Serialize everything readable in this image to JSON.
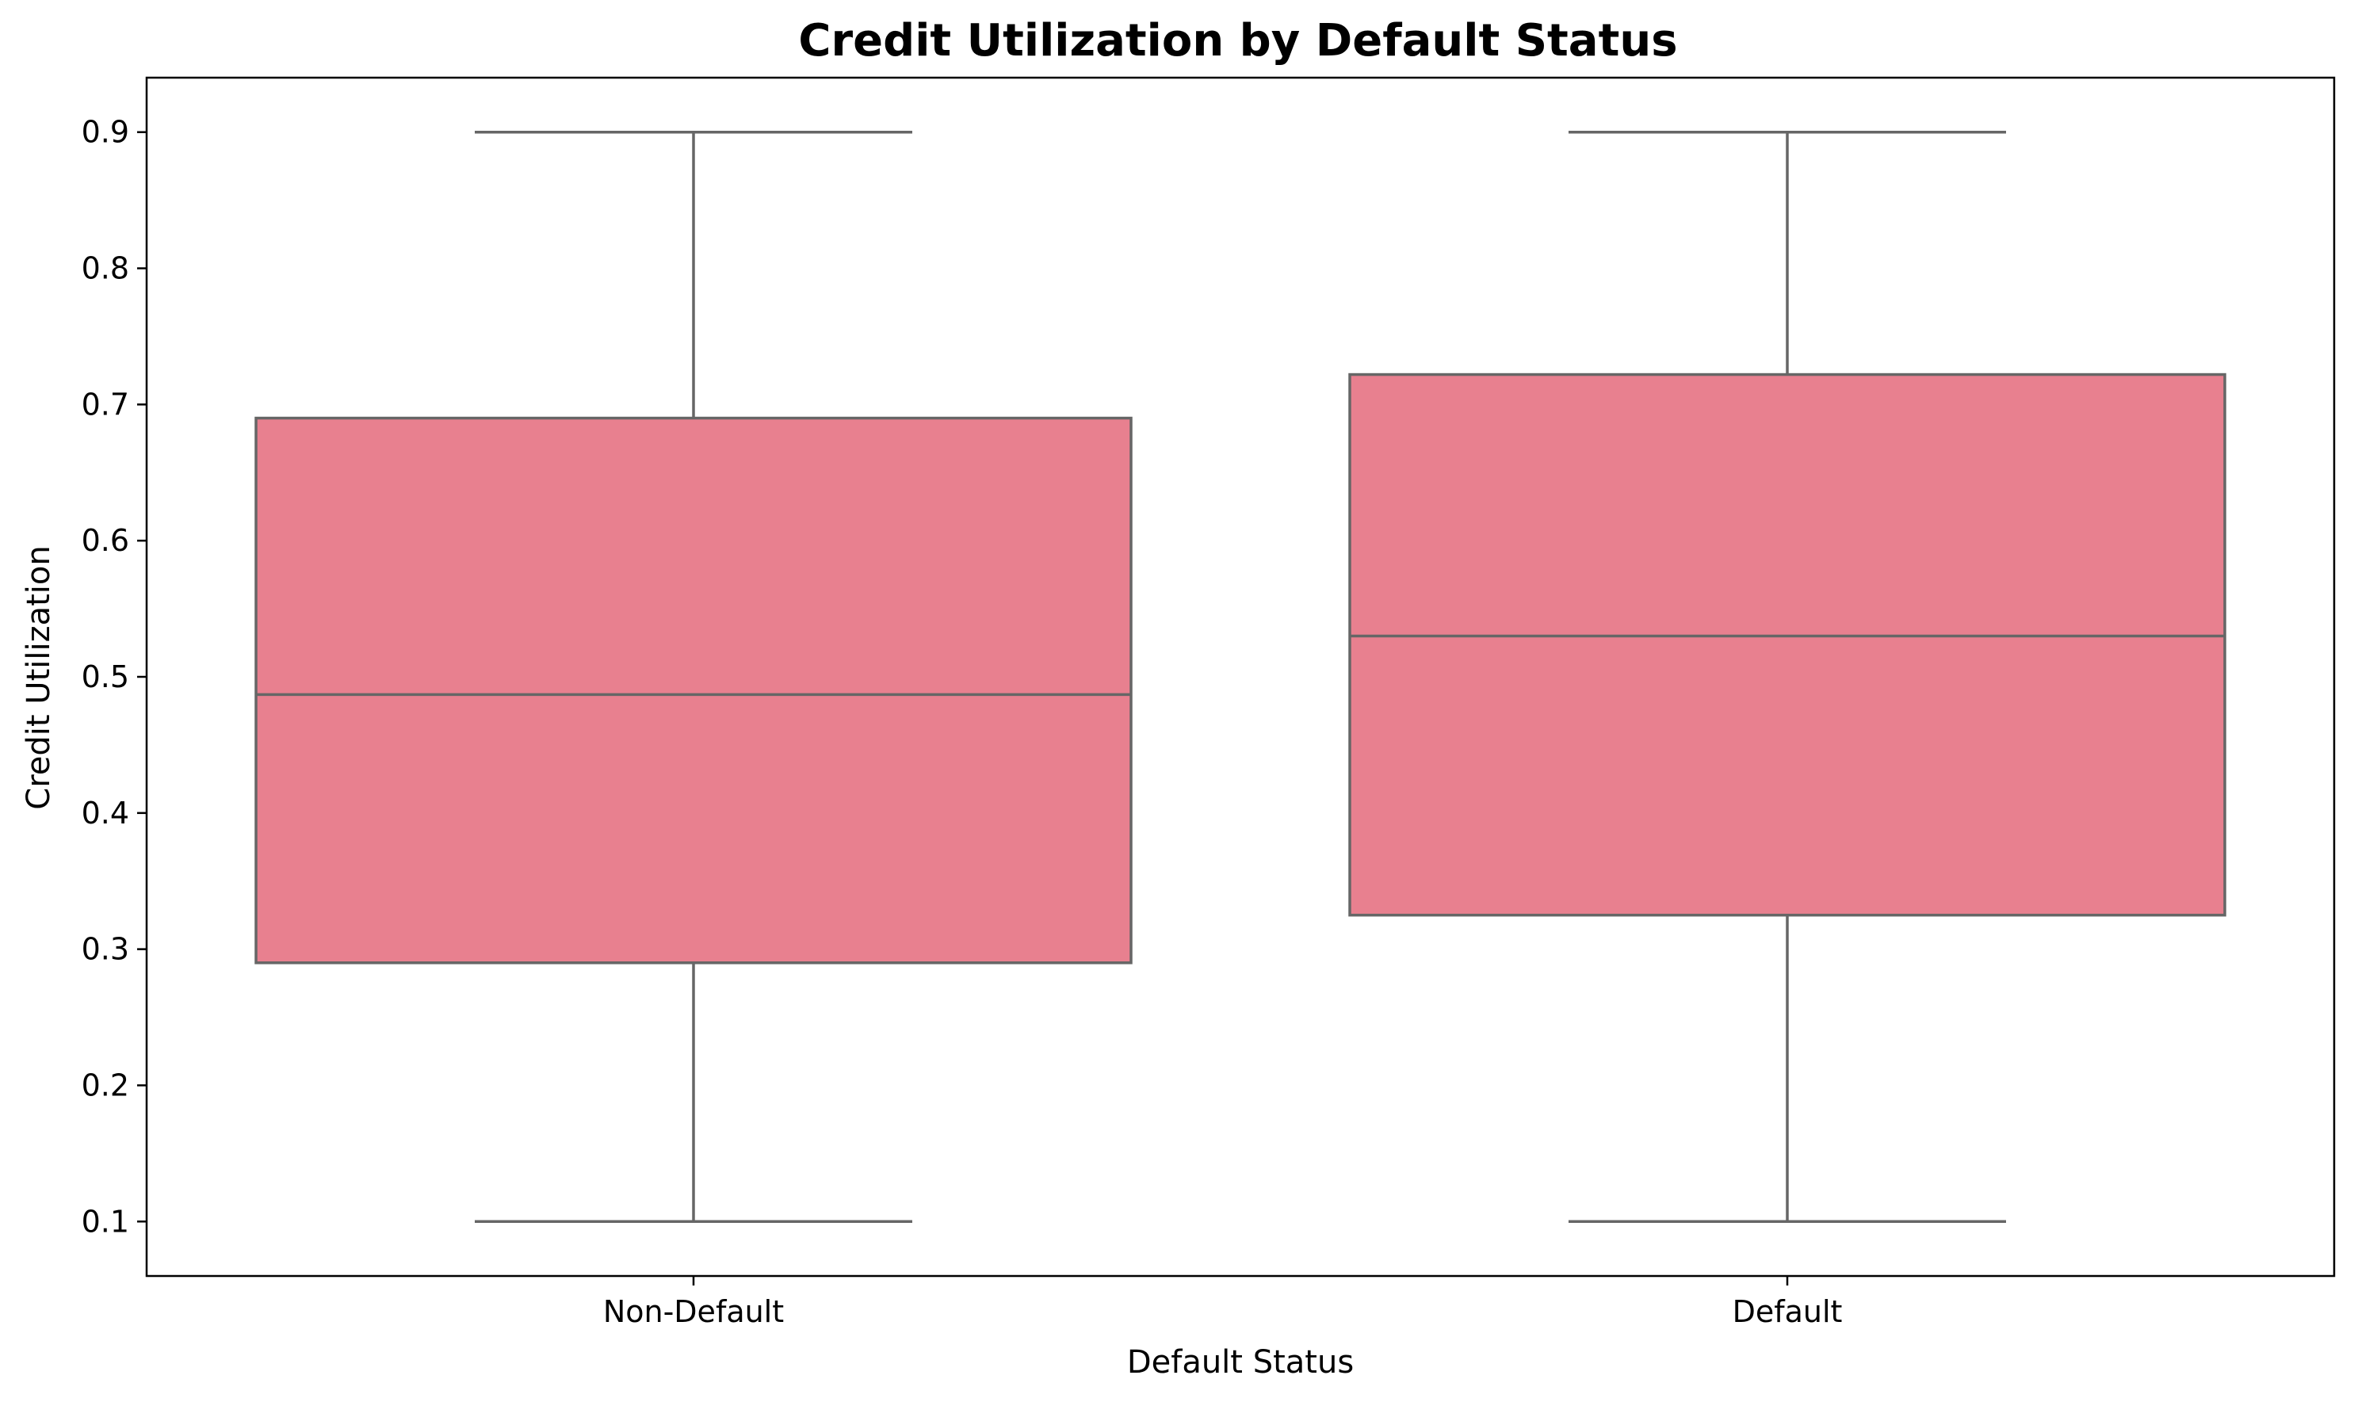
{
  "chart_data": {
    "type": "box",
    "title": "Credit Utilization by Default Status",
    "xlabel": "Default Status",
    "ylabel": "Credit Utilization",
    "ylim": [
      0.06,
      0.94
    ],
    "yticks": [
      0.1,
      0.2,
      0.3,
      0.4,
      0.5,
      0.6,
      0.7,
      0.8,
      0.9
    ],
    "ytick_labels": [
      "0.1",
      "0.2",
      "0.3",
      "0.4",
      "0.5",
      "0.6",
      "0.7",
      "0.8",
      "0.9"
    ],
    "categories": [
      "Non-Default",
      "Default"
    ],
    "boxes": [
      {
        "category": "Non-Default",
        "min": 0.1,
        "q1": 0.29,
        "median": 0.487,
        "q3": 0.69,
        "max": 0.9
      },
      {
        "category": "Default",
        "min": 0.1,
        "q1": 0.325,
        "median": 0.53,
        "q3": 0.722,
        "max": 0.9
      }
    ],
    "box_color": "#e8808f",
    "line_color": "#666666",
    "grid": false,
    "legend": "none"
  }
}
